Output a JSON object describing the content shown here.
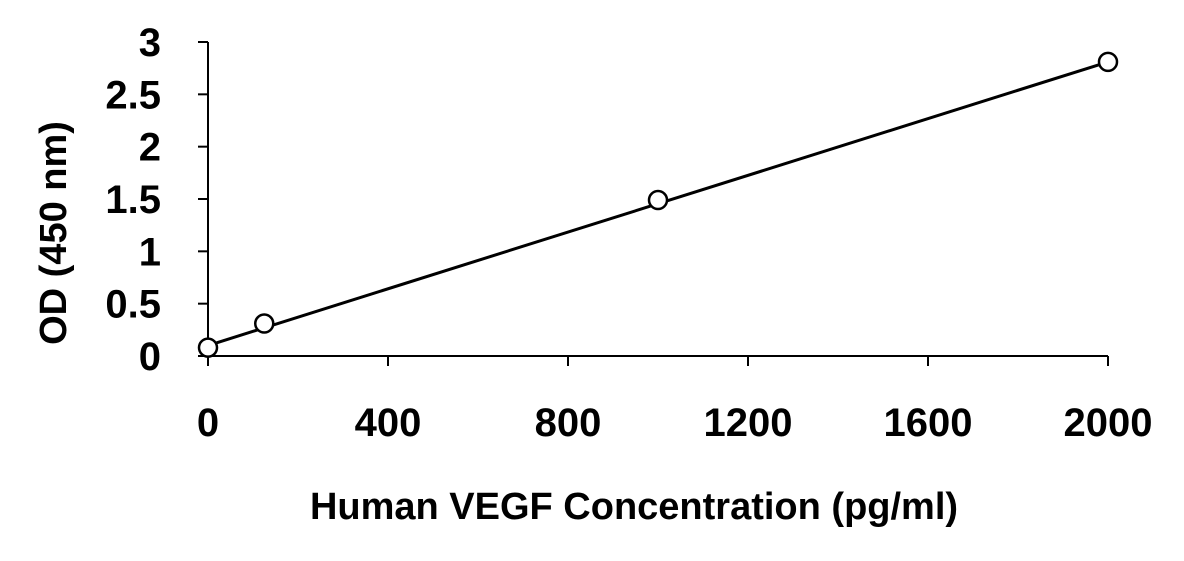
{
  "chart_data": {
    "type": "scatter",
    "title": "",
    "xlabel": "Human VEGF Concentration (pg/ml)",
    "ylabel": "OD (450 nm)",
    "xlim": [
      0,
      2000
    ],
    "ylim": [
      0,
      3
    ],
    "x_ticks": [
      "0",
      "400",
      "800",
      "1200",
      "1600",
      "2000"
    ],
    "y_ticks": [
      "0",
      "0.5",
      "1",
      "1.5",
      "2",
      "2.5",
      "3"
    ],
    "grid": false,
    "legend": "none",
    "series": [
      {
        "marker": "open-circle",
        "color": "#000000",
        "points": [
          {
            "x": 0,
            "y": 0.08
          },
          {
            "x": 125,
            "y": 0.31
          },
          {
            "x": 1000,
            "y": 1.49
          },
          {
            "x": 2000,
            "y": 2.81
          }
        ]
      }
    ],
    "trendline": {
      "type": "linear",
      "color": "#000000",
      "start": {
        "x": 0,
        "y": 0.1
      },
      "end": {
        "x": 2000,
        "y": 2.81
      }
    }
  }
}
